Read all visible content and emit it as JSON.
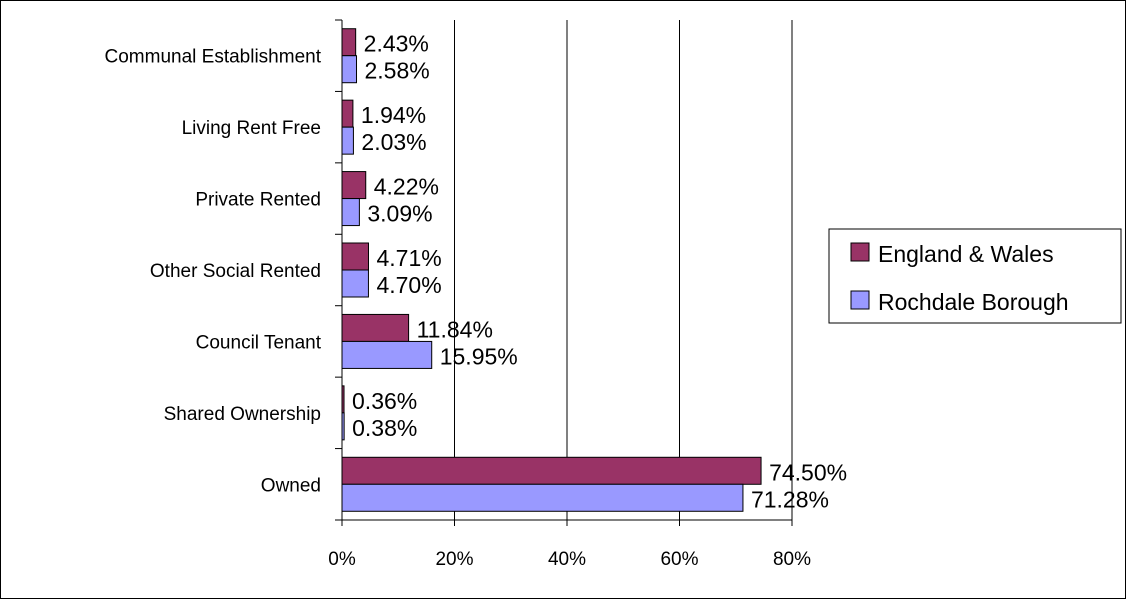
{
  "chart_data": {
    "type": "bar",
    "orientation": "horizontal",
    "categories": [
      "Owned",
      "Shared Ownership",
      "Council Tenant",
      "Other Social Rented",
      "Private Rented",
      "Living Rent Free",
      "Communal Establishment"
    ],
    "series": [
      {
        "name": "England & Wales",
        "color": "#993366",
        "values": [
          74.5,
          0.36,
          11.84,
          4.71,
          4.22,
          1.94,
          2.43
        ],
        "labels": [
          "74.50%",
          "0.36%",
          "11.84%",
          "4.71%",
          "4.22%",
          "1.94%",
          "2.43%"
        ]
      },
      {
        "name": "Rochdale Borough",
        "color": "#9999ff",
        "values": [
          71.28,
          0.38,
          15.95,
          4.7,
          3.09,
          2.03,
          2.58
        ],
        "labels": [
          "71.28%",
          "0.38%",
          "15.95%",
          "4.70%",
          "3.09%",
          "2.03%",
          "2.58%"
        ]
      }
    ],
    "xlim": [
      0,
      80
    ],
    "xticks": [
      0,
      20,
      40,
      60,
      80
    ],
    "xtick_labels": [
      "0%",
      "20%",
      "40%",
      "60%",
      "80%"
    ],
    "grid": "vertical",
    "legend_position": "right"
  }
}
